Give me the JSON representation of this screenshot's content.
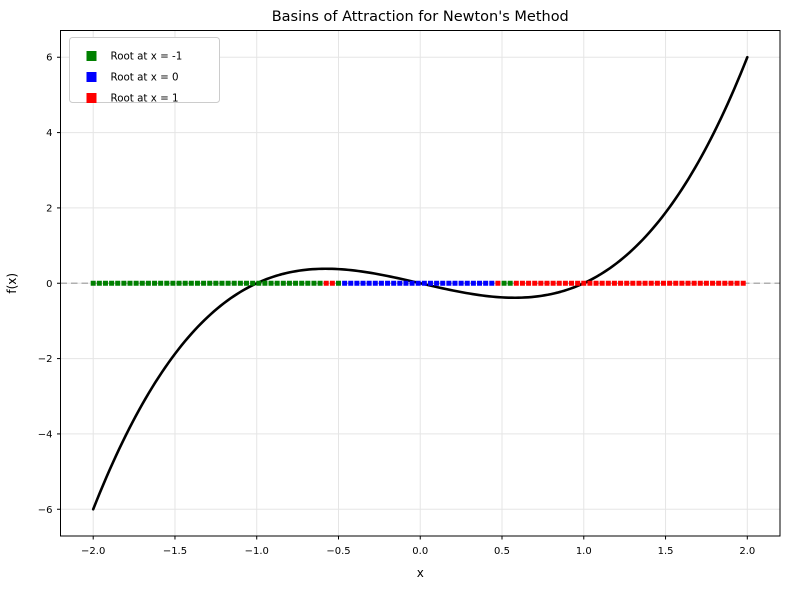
{
  "title": "Basins of Attraction for Newton's Method",
  "xlabel": "x",
  "ylabel": "f(x)",
  "chart_data": {
    "type": "scatter",
    "title": "Basins of Attraction for Newton's Method",
    "xlabel": "x",
    "ylabel": "f(x)",
    "xlim": [
      -2.2,
      2.2
    ],
    "ylim": [
      -6.71,
      6.71
    ],
    "xticks": [
      -2.0,
      -1.5,
      -1.0,
      -0.5,
      0.0,
      0.5,
      1.0,
      1.5,
      2.0
    ],
    "yticks": [
      -6,
      -4,
      -2,
      0,
      2,
      4,
      6
    ],
    "grid": true,
    "grid_color": "#e5e5e5",
    "curve": {
      "description": "cubic function with roots at -1, 0, 1",
      "poly_coeffs_a0_to_a3": [
        0,
        -1,
        0,
        1
      ],
      "x_range": [
        -2,
        2
      ],
      "endpoints_y": [
        -6,
        6
      ],
      "color": "#000000",
      "linewidth": 2.6
    },
    "zero_line": {
      "y": 0,
      "style": "dashed",
      "color": "#b0b0b0"
    },
    "basin_dots": {
      "y": 0,
      "marker": "square",
      "x_start": -2.0,
      "x_step": 0.0375,
      "count": 107,
      "x_end": 1.975,
      "segments": [
        {
          "x_from": -2.0,
          "x_to": -0.594,
          "root": -1,
          "color": "#008000"
        },
        {
          "x_from": -0.594,
          "x_to": -0.519,
          "root": 1,
          "color": "#ff0000"
        },
        {
          "x_from": -0.519,
          "x_to": -0.481,
          "root": -1,
          "color": "#008000"
        },
        {
          "x_from": -0.481,
          "x_to": 0.456,
          "root": 0,
          "color": "#0000ff"
        },
        {
          "x_from": 0.456,
          "x_to": 0.494,
          "root": 1,
          "color": "#ff0000"
        },
        {
          "x_from": 0.494,
          "x_to": 0.569,
          "root": -1,
          "color": "#008000"
        },
        {
          "x_from": 0.569,
          "x_to": 2.0,
          "root": 1,
          "color": "#ff0000"
        }
      ]
    },
    "legend": {
      "position": "upper-left",
      "items": [
        {
          "label": "Root at x = -1",
          "color": "#008000"
        },
        {
          "label": "Root at x = 0",
          "color": "#0000ff"
        },
        {
          "label": "Root at x = 1",
          "color": "#ff0000"
        }
      ]
    }
  }
}
